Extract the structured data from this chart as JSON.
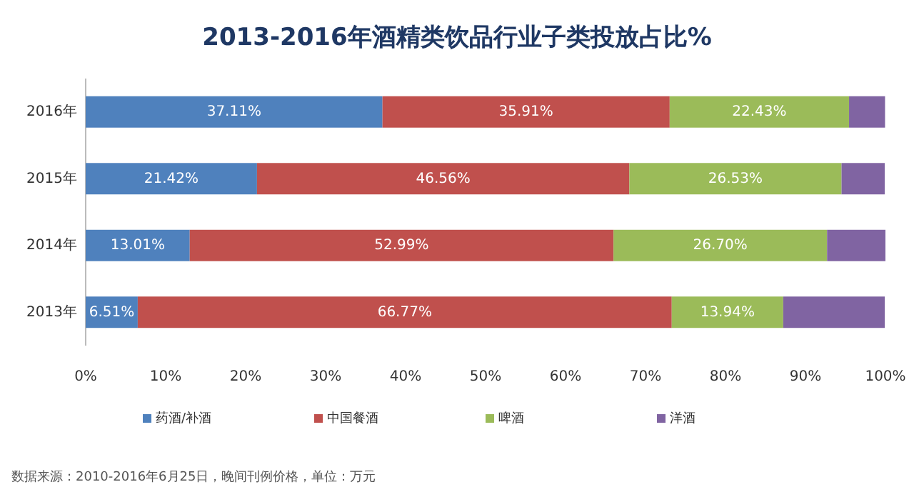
{
  "chart_data": {
    "type": "bar",
    "orientation": "horizontal",
    "stacked": true,
    "title": "2013-2016年酒精类饮品行业子类投放占比%",
    "categories": [
      "2016年",
      "2015年",
      "2014年",
      "2013年"
    ],
    "series": [
      {
        "name": "药酒/补酒",
        "color": "#4f81bd",
        "values": [
          37.11,
          21.42,
          13.01,
          6.51
        ],
        "value_labels": [
          "37.11%",
          "21.42%",
          "13.01%",
          "6.51%"
        ]
      },
      {
        "name": "中国餐酒",
        "color": "#c0504d",
        "values": [
          35.91,
          46.56,
          52.99,
          66.77
        ],
        "value_labels": [
          "35.91%",
          "46.56%",
          "52.99%",
          "66.77%"
        ]
      },
      {
        "name": "啤酒",
        "color": "#9bbb59",
        "values": [
          22.43,
          26.53,
          26.7,
          13.94
        ],
        "value_labels": [
          "22.43%",
          "26.53%",
          "26.70%",
          "13.94%"
        ]
      },
      {
        "name": "洋酒",
        "color": "#8064a2",
        "values": [
          4.5,
          5.4,
          7.3,
          12.7
        ]
      }
    ],
    "xlim": [
      0,
      100
    ],
    "xticks": [
      {
        "value": 0,
        "label": "0%"
      },
      {
        "value": 10,
        "label": "10%"
      },
      {
        "value": 20,
        "label": "20%"
      },
      {
        "value": 30,
        "label": "30%"
      },
      {
        "value": 40,
        "label": "40%"
      },
      {
        "value": 50,
        "label": "50%"
      },
      {
        "value": 60,
        "label": "60%"
      },
      {
        "value": 70,
        "label": "70%"
      },
      {
        "value": 80,
        "label": "80%"
      },
      {
        "value": 90,
        "label": "90%"
      },
      {
        "value": 100,
        "label": "100%"
      }
    ],
    "legend": "bottom",
    "annotations": [
      "数据来源：2010-2016年6月25日，晚间刊例价格，单位：万元"
    ]
  }
}
